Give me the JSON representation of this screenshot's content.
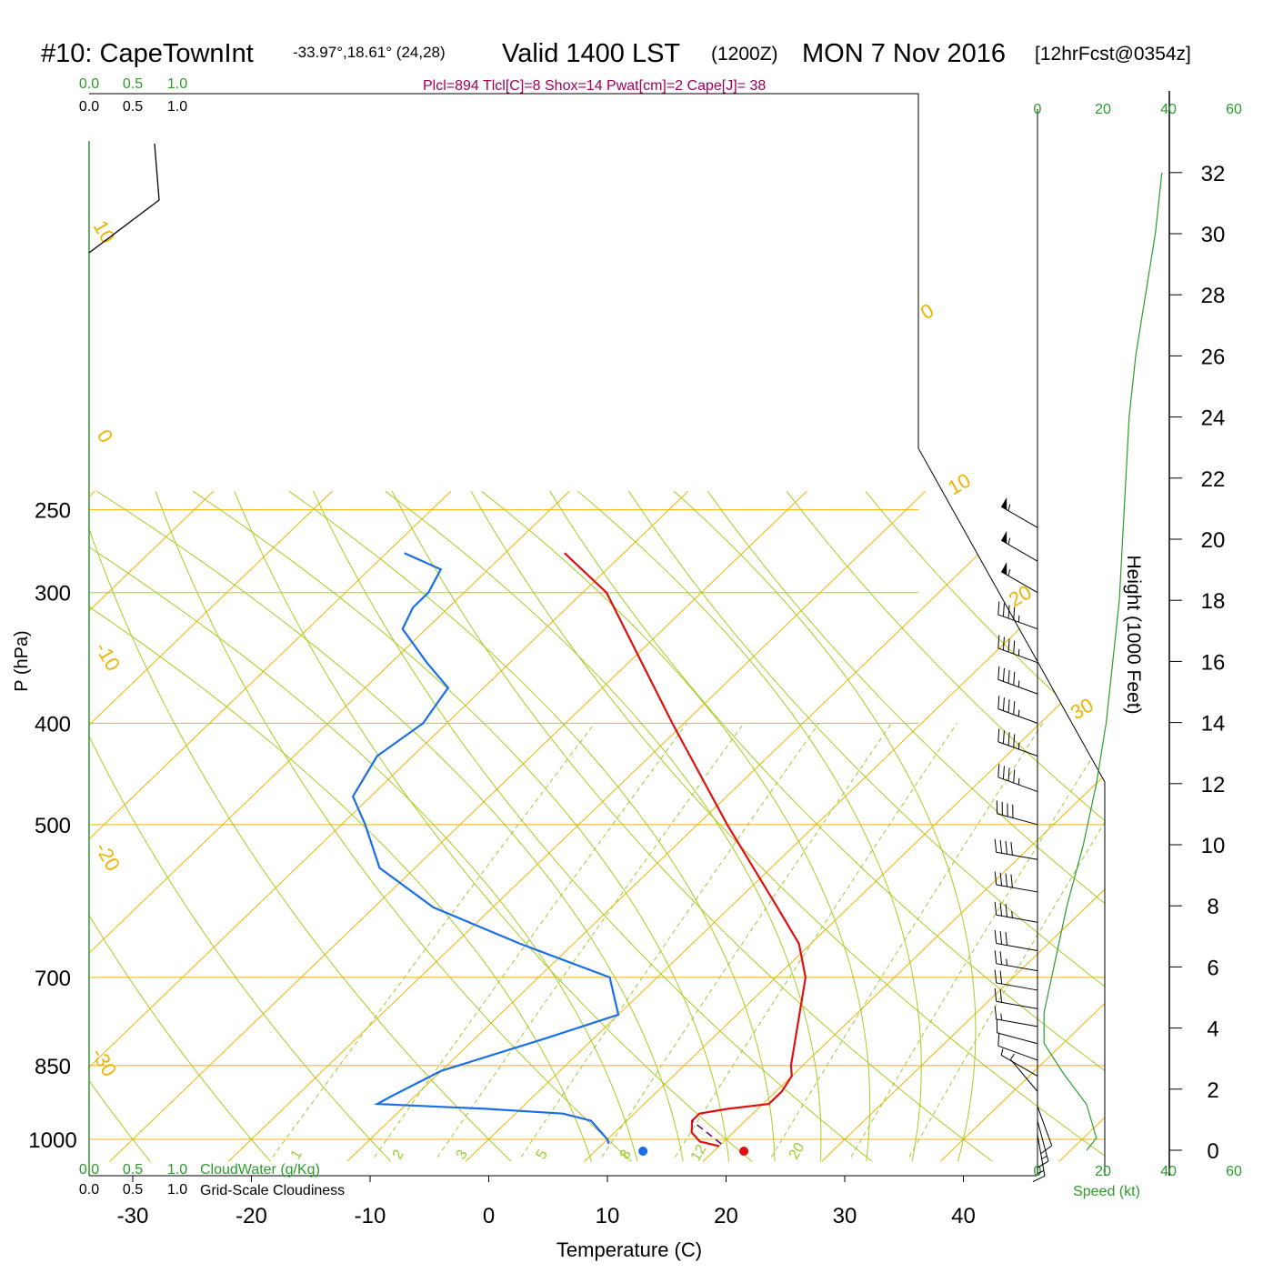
{
  "header": {
    "station": "#10: CapeTownInt",
    "coords": "-33.97°,18.61° (24,28)",
    "valid": "Valid 1400 LST",
    "zulu": "(1200Z)",
    "date": "MON 7 Nov 2016",
    "forecast": "[12hrFcst@0354z]",
    "indices": "Plcl=894 Tlcl[C]=8 Shox=14 Pwat[cm]=2 Cape[J]= 38"
  },
  "colors": {
    "temperature": "#e01010",
    "dewpoint": "#1a6fe6",
    "isotherms": "#f0b400",
    "dry_adiabats": "#a8cc22",
    "mixing_ratio": "#99cc33",
    "height_axis": "#2a9d2a",
    "annotation": "#a0005a"
  },
  "chart_data": {
    "type": "line",
    "xlabel": "Temperature (C)",
    "ylabel": "P (hPa)",
    "x_ticks": [
      "-30",
      "-20",
      "-10",
      "0",
      "10",
      "20",
      "30",
      "40"
    ],
    "x_tick_values": [
      -30,
      -20,
      -10,
      0,
      10,
      20,
      30,
      40
    ],
    "p_ticks": [
      "250",
      "300",
      "400",
      "500",
      "700",
      "850",
      "1000"
    ],
    "p_tick_values": [
      250,
      300,
      400,
      500,
      700,
      850,
      1000
    ],
    "log_pressure_axis": true,
    "isotherm_labels": [
      "10",
      "0",
      "-10",
      "-20",
      "-30",
      "0",
      "10",
      "20",
      "30"
    ],
    "mixing_ratio_labels": [
      "1",
      "2",
      "3",
      "5",
      "8",
      "12",
      "20"
    ],
    "temperature_profile": [
      {
        "p": 1015,
        "t": 20.0
      },
      {
        "p": 1005,
        "t": 18.0
      },
      {
        "p": 985,
        "t": 16.5
      },
      {
        "p": 960,
        "t": 15.5
      },
      {
        "p": 945,
        "t": 15.5
      },
      {
        "p": 935,
        "t": 17.5
      },
      {
        "p": 925,
        "t": 20.5
      },
      {
        "p": 900,
        "t": 20.5
      },
      {
        "p": 870,
        "t": 20.0
      },
      {
        "p": 850,
        "t": 19.0
      },
      {
        "p": 700,
        "t": 12.5
      },
      {
        "p": 650,
        "t": 9.0
      },
      {
        "p": 600,
        "t": 4.0
      },
      {
        "p": 500,
        "t": -7.5
      },
      {
        "p": 400,
        "t": -21.0
      },
      {
        "p": 300,
        "t": -38.0
      },
      {
        "p": 275,
        "t": -45.0
      }
    ],
    "dewpoint_profile": [
      {
        "p": 1010,
        "t": 10.5
      },
      {
        "p": 1000,
        "t": 10.0
      },
      {
        "p": 960,
        "t": 7.0
      },
      {
        "p": 945,
        "t": 4.0
      },
      {
        "p": 935,
        "t": -3.0
      },
      {
        "p": 925,
        "t": -12.5
      },
      {
        "p": 910,
        "t": -12.0
      },
      {
        "p": 860,
        "t": -10.0
      },
      {
        "p": 800,
        "t": -4.0
      },
      {
        "p": 760,
        "t": 0.0
      },
      {
        "p": 700,
        "t": -4.0
      },
      {
        "p": 650,
        "t": -14.5
      },
      {
        "p": 600,
        "t": -25.0
      },
      {
        "p": 550,
        "t": -33.0
      },
      {
        "p": 500,
        "t": -38.0
      },
      {
        "p": 470,
        "t": -41.5
      },
      {
        "p": 430,
        "t": -43.0
      },
      {
        "p": 400,
        "t": -42.0
      },
      {
        "p": 370,
        "t": -43.0
      },
      {
        "p": 350,
        "t": -47.0
      },
      {
        "p": 325,
        "t": -52.0
      },
      {
        "p": 310,
        "t": -53.0
      },
      {
        "p": 300,
        "t": -53.0
      },
      {
        "p": 285,
        "t": -54.0
      },
      {
        "p": 275,
        "t": -58.5
      }
    ],
    "parcel_path": [
      {
        "p": 1010,
        "t": 20.0
      },
      {
        "p": 960,
        "t": 15.5
      }
    ],
    "surface_temperature_marker": {
      "p": 1010,
      "t": 21.5
    },
    "surface_dewpoint_marker": {
      "p": 1010,
      "t": 13.0
    },
    "cloud_scale_labels": [
      "0.0",
      "0.5",
      "1.0"
    ],
    "cloudwater_label": "CloudWater (g/Kg)",
    "cloudiness_label": "Grid-Scale Cloudiness",
    "height_axis_label": "Height (1000 Feet)",
    "height_ticks": [
      "0",
      "2",
      "4",
      "6",
      "8",
      "10",
      "12",
      "14",
      "16",
      "18",
      "20",
      "22",
      "24",
      "26",
      "28",
      "30",
      "32"
    ],
    "height_tick_values_kft": [
      0,
      2,
      4,
      6,
      8,
      10,
      12,
      14,
      16,
      18,
      20,
      22,
      24,
      26,
      28,
      30,
      32
    ],
    "speed_axis_label": "Speed (kt)",
    "speed_ticks": [
      "0",
      "20",
      "40",
      "60"
    ],
    "speed_tick_values": [
      0,
      20,
      40,
      60
    ],
    "wind_speed_profile_kt": [
      {
        "h": 0.0,
        "s": 15
      },
      {
        "h": 0.4,
        "s": 18
      },
      {
        "h": 1.5,
        "s": 15
      },
      {
        "h": 2.5,
        "s": 8
      },
      {
        "h": 3.5,
        "s": 2
      },
      {
        "h": 4.5,
        "s": 2
      },
      {
        "h": 6,
        "s": 5
      },
      {
        "h": 8,
        "s": 9
      },
      {
        "h": 10,
        "s": 14
      },
      {
        "h": 12,
        "s": 18
      },
      {
        "h": 14,
        "s": 21
      },
      {
        "h": 16,
        "s": 23
      },
      {
        "h": 18,
        "s": 25
      },
      {
        "h": 20,
        "s": 26
      },
      {
        "h": 22,
        "s": 27
      },
      {
        "h": 24,
        "s": 28
      },
      {
        "h": 26,
        "s": 30
      },
      {
        "h": 28,
        "s": 33
      },
      {
        "h": 30,
        "s": 36
      },
      {
        "h": 32,
        "s": 38
      }
    ],
    "wind_barbs": [
      {
        "p": 260,
        "dir": 300,
        "spd": 55
      },
      {
        "p": 280,
        "dir": 300,
        "spd": 55
      },
      {
        "p": 300,
        "dir": 300,
        "spd": 55
      },
      {
        "p": 325,
        "dir": 290,
        "spd": 45
      },
      {
        "p": 350,
        "dir": 290,
        "spd": 45
      },
      {
        "p": 375,
        "dir": 290,
        "spd": 45
      },
      {
        "p": 400,
        "dir": 290,
        "spd": 45
      },
      {
        "p": 430,
        "dir": 290,
        "spd": 45
      },
      {
        "p": 465,
        "dir": 290,
        "spd": 45
      },
      {
        "p": 500,
        "dir": 285,
        "spd": 40
      },
      {
        "p": 540,
        "dir": 280,
        "spd": 40
      },
      {
        "p": 580,
        "dir": 280,
        "spd": 40
      },
      {
        "p": 620,
        "dir": 280,
        "spd": 35
      },
      {
        "p": 660,
        "dir": 280,
        "spd": 30
      },
      {
        "p": 690,
        "dir": 280,
        "spd": 25
      },
      {
        "p": 720,
        "dir": 280,
        "spd": 20
      },
      {
        "p": 750,
        "dir": 280,
        "spd": 20
      },
      {
        "p": 780,
        "dir": 280,
        "spd": 15
      },
      {
        "p": 810,
        "dir": 285,
        "spd": 10
      },
      {
        "p": 840,
        "dir": 290,
        "spd": 10
      },
      {
        "p": 870,
        "dir": 300,
        "spd": 5
      },
      {
        "p": 900,
        "dir": 320,
        "spd": 5
      },
      {
        "p": 930,
        "dir": 160,
        "spd": 10
      },
      {
        "p": 960,
        "dir": 165,
        "spd": 15
      },
      {
        "p": 990,
        "dir": 170,
        "spd": 15
      }
    ],
    "grid": true
  }
}
